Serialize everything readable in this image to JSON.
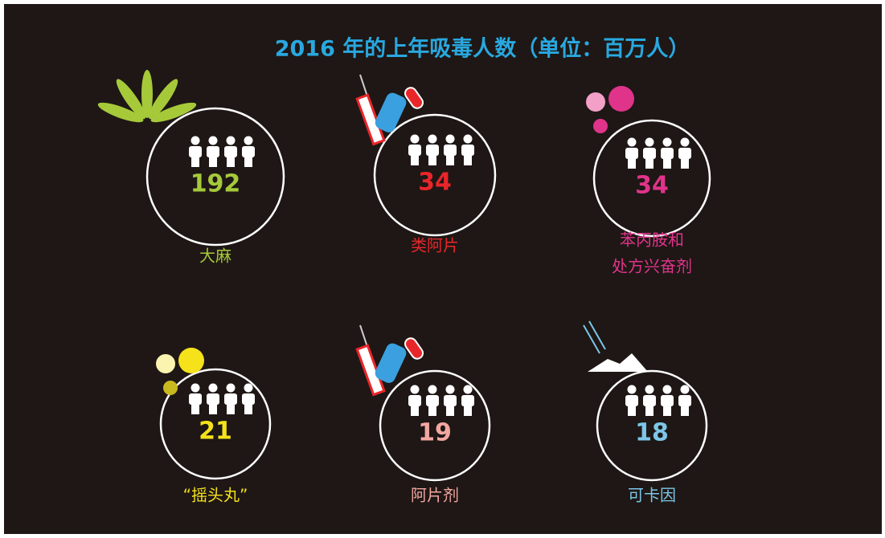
{
  "title": "2016 年的上年吸毒人数（单位：百万人）",
  "title_color": "#29a8e0",
  "items": [
    {
      "label": [
        "大麻"
      ],
      "value": 192,
      "color": "#a6c93a",
      "icon": "leaf"
    },
    {
      "label": [
        "类阿片"
      ],
      "value": 34,
      "color": "#e8262a",
      "icon": "syringe"
    },
    {
      "label": [
        "苯丙胺和",
        "处方兴奋剂"
      ],
      "value": 34,
      "color": "#e0338a",
      "icon": "pills-pink"
    },
    {
      "label": [
        "“摇头丸”"
      ],
      "value": 21,
      "color": "#f5e21b",
      "icon": "pills-yellow"
    },
    {
      "label": [
        "阿片剂"
      ],
      "value": 19,
      "color": "#f2a7a0",
      "icon": "syringe"
    },
    {
      "label": [
        "可卡因"
      ],
      "value": 18,
      "color": "#7cc6e8",
      "icon": "powder"
    }
  ]
}
